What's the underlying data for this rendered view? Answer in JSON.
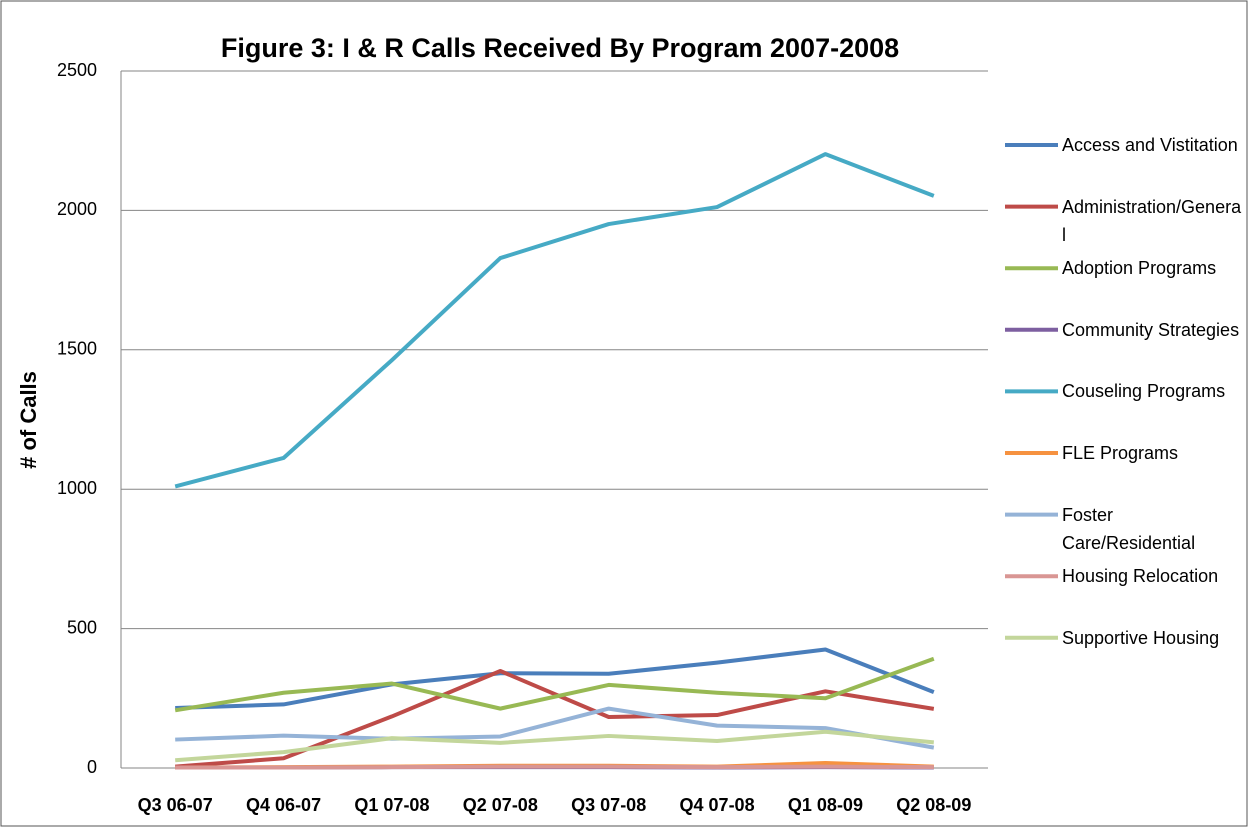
{
  "chart_data": {
    "type": "line",
    "title": "Figure 3:  I & R Calls Received By Program 2007-2008",
    "y_label": "# of Calls",
    "categories": [
      "Q3 06-07",
      "Q4 06-07",
      "Q1 07-08",
      "Q2 07-08",
      "Q3 07-08",
      "Q4 07-08",
      "Q1 08-09",
      "Q2 08-09"
    ],
    "series": [
      {
        "name": "Access and Vistitation",
        "color": "#4a7ebb",
        "values": [
          215,
          228,
          300,
          340,
          338,
          378,
          425,
          272
        ]
      },
      {
        "name": "Administration/General",
        "color": "#be4b48",
        "values": [
          5,
          35,
          185,
          348,
          183,
          190,
          275,
          212
        ]
      },
      {
        "name": "Adoption Programs",
        "color": "#98b954",
        "values": [
          207,
          270,
          303,
          213,
          298,
          270,
          250,
          392
        ]
      },
      {
        "name": "Community Strategies",
        "color": "#7d5fa0",
        "values": [
          2,
          2,
          3,
          3,
          3,
          2,
          3,
          2
        ]
      },
      {
        "name": "Couseling Programs",
        "color": "#46aac5",
        "values": [
          1010,
          1112,
          1463,
          1829,
          1951,
          2012,
          2202,
          2052
        ]
      },
      {
        "name": "FLE Programs",
        "color": "#f69240",
        "values": [
          2,
          3,
          5,
          8,
          8,
          5,
          18,
          5
        ]
      },
      {
        "name": "Foster Care/Residential",
        "color": "#95b3d7",
        "values": [
          102,
          116,
          105,
          113,
          213,
          152,
          143,
          73
        ]
      },
      {
        "name": "Housing Relocation",
        "color": "#d99694",
        "values": [
          2,
          2,
          3,
          5,
          5,
          3,
          5,
          3
        ]
      },
      {
        "name": "Supportive Housing",
        "color": "#c3d69b",
        "values": [
          28,
          57,
          107,
          90,
          115,
          97,
          130,
          92
        ]
      }
    ],
    "ylim": [
      0,
      2500
    ],
    "yticks": [
      0,
      500,
      1000,
      1500,
      2000,
      2500
    ],
    "grid": true,
    "legend": "right"
  }
}
